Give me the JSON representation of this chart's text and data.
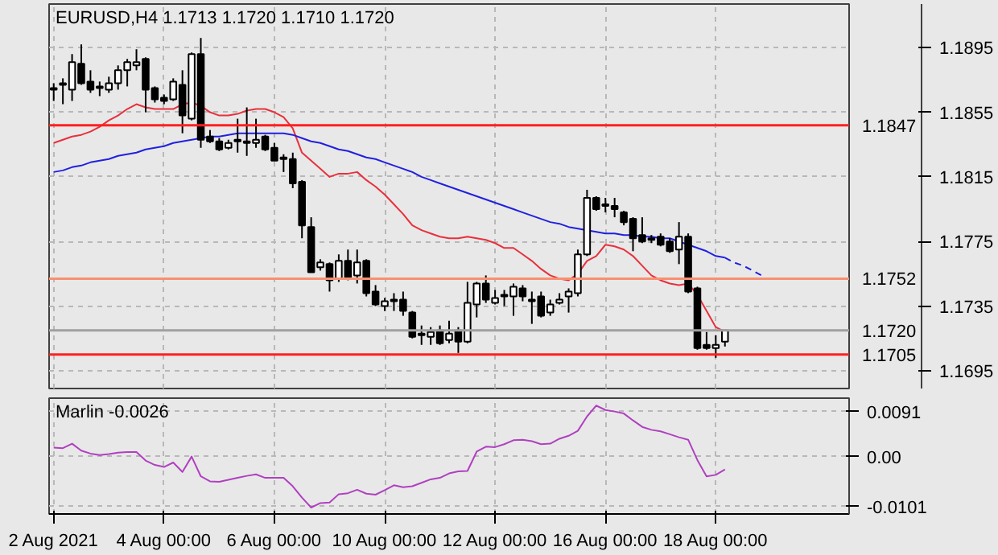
{
  "chart_data": [
    {
      "type": "candlestick",
      "title": "EURUSD,H4  1.1713 1.1720 1.1710 1.1720",
      "tick_labels": "y",
      "grid": true,
      "categories": [
        null,
        null,
        null,
        null,
        null,
        null,
        null,
        null,
        null,
        null,
        null,
        null,
        null,
        null,
        null,
        null,
        null,
        null,
        null,
        null,
        null,
        null,
        null,
        null,
        null,
        null,
        null,
        null,
        null,
        null,
        null,
        null,
        null,
        null,
        null,
        null,
        null,
        null,
        null,
        null,
        null,
        null,
        null,
        null,
        null,
        null,
        null,
        null,
        null,
        null,
        null,
        null,
        null,
        null,
        null,
        null,
        null,
        null,
        null,
        null,
        null,
        null,
        null,
        null,
        null,
        null,
        null,
        null,
        null,
        null,
        null,
        null,
        null,
        null,
        null,
        null,
        null,
        null,
        null,
        null,
        null,
        null,
        null,
        null,
        null,
        null,
        null
      ],
      "ohlc": [
        [
          1.187,
          1.1873,
          1.1862,
          1.1869
        ],
        [
          1.1872,
          1.1876,
          1.186,
          1.1873
        ],
        [
          1.1869,
          1.1891,
          1.1862,
          1.1886
        ],
        [
          1.1885,
          1.1897,
          1.1872,
          1.1873
        ],
        [
          1.1874,
          1.1881,
          1.1867,
          1.1869
        ],
        [
          1.1871,
          1.1874,
          1.1865,
          1.187
        ],
        [
          1.1869,
          1.1877,
          1.1867,
          1.1873
        ],
        [
          1.1873,
          1.1884,
          1.1869,
          1.1881
        ],
        [
          1.1881,
          1.1888,
          1.1871,
          1.1886
        ],
        [
          1.1884,
          1.1894,
          1.1881,
          1.1886
        ],
        [
          1.1888,
          1.1889,
          1.1855,
          1.1869
        ],
        [
          1.187,
          1.1871,
          1.1861,
          1.1863
        ],
        [
          1.1864,
          1.1866,
          1.186,
          1.1862
        ],
        [
          1.1863,
          1.1876,
          1.1862,
          1.1874
        ],
        [
          1.1872,
          1.1881,
          1.1842,
          1.1853
        ],
        [
          1.1851,
          1.1892,
          1.185,
          1.1891
        ],
        [
          1.1891,
          1.1901,
          1.1833,
          1.1838
        ],
        [
          1.184,
          1.1844,
          1.1836,
          1.1837
        ],
        [
          1.1837,
          1.1839,
          1.1831,
          1.1832
        ],
        [
          1.1833,
          1.1838,
          1.1832,
          1.1836
        ],
        [
          1.1837,
          1.1851,
          1.183,
          1.1838
        ],
        [
          1.1836,
          1.1858,
          1.1828,
          1.1837
        ],
        [
          1.1836,
          1.1851,
          1.1833,
          1.1838
        ],
        [
          1.184,
          1.1841,
          1.1831,
          1.1832
        ],
        [
          1.1833,
          1.1836,
          1.1825,
          1.1825
        ],
        [
          1.1826,
          1.1829,
          1.1818,
          1.1827
        ],
        [
          1.1826,
          1.183,
          1.1808,
          1.1811
        ],
        [
          1.1812,
          1.1813,
          1.1777,
          1.1785
        ],
        [
          1.1784,
          1.179,
          1.1756,
          1.1756
        ],
        [
          1.1759,
          1.1764,
          1.1757,
          1.1762
        ],
        [
          1.1761,
          1.1762,
          1.1744,
          1.1751
        ],
        [
          1.1752,
          1.1767,
          1.175,
          1.1763
        ],
        [
          1.1763,
          1.177,
          1.1751,
          1.1753
        ],
        [
          1.1754,
          1.177,
          1.1749,
          1.1762
        ],
        [
          1.1763,
          1.1764,
          1.1741,
          1.1743
        ],
        [
          1.1744,
          1.1748,
          1.1735,
          1.1736
        ],
        [
          1.1735,
          1.174,
          1.1732,
          1.1738
        ],
        [
          1.1738,
          1.1743,
          1.1732,
          1.1739
        ],
        [
          1.1739,
          1.1744,
          1.1729,
          1.1732
        ],
        [
          1.1731,
          1.1732,
          1.1715,
          1.1716
        ],
        [
          1.1717,
          1.1723,
          1.1711,
          1.1718
        ],
        [
          1.1716,
          1.1722,
          1.1711,
          1.1719
        ],
        [
          1.172,
          1.1723,
          1.1711,
          1.1712
        ],
        [
          1.1714,
          1.1726,
          1.1712,
          1.1718
        ],
        [
          1.172,
          1.1722,
          1.1706,
          1.1713
        ],
        [
          1.1713,
          1.175,
          1.1712,
          1.1737
        ],
        [
          1.1736,
          1.175,
          1.1728,
          1.1749
        ],
        [
          1.1749,
          1.1754,
          1.1737,
          1.1739
        ],
        [
          1.1737,
          1.1745,
          1.1736,
          1.174
        ],
        [
          1.1741,
          1.1745,
          1.1735,
          1.1742
        ],
        [
          1.1741,
          1.1749,
          1.1729,
          1.1747
        ],
        [
          1.1746,
          1.1748,
          1.1738,
          1.1741
        ],
        [
          1.1739,
          1.1744,
          1.1724,
          1.1738
        ],
        [
          1.1741,
          1.1744,
          1.1728,
          1.1729
        ],
        [
          1.1731,
          1.1739,
          1.1729,
          1.1736
        ],
        [
          1.1737,
          1.1743,
          1.1736,
          1.1739
        ],
        [
          1.1741,
          1.1746,
          1.1731,
          1.1744
        ],
        [
          1.1743,
          1.177,
          1.1741,
          1.1767
        ],
        [
          1.1767,
          1.1807,
          1.1766,
          1.1802
        ],
        [
          1.1802,
          1.1803,
          1.1794,
          1.1795
        ],
        [
          1.1798,
          1.1802,
          1.1793,
          1.1797
        ],
        [
          1.1797,
          1.1802,
          1.179,
          1.1795
        ],
        [
          1.1793,
          1.1794,
          1.1785,
          1.1787
        ],
        [
          1.1789,
          1.179,
          1.1769,
          1.1777
        ],
        [
          1.1779,
          1.179,
          1.1774,
          1.1775
        ],
        [
          1.1777,
          1.1779,
          1.1774,
          1.1776
        ],
        [
          1.1778,
          1.178,
          1.1772,
          1.1773
        ],
        [
          1.1775,
          1.1777,
          1.1768,
          1.1769
        ],
        [
          1.177,
          1.1787,
          1.1761,
          1.1778
        ],
        [
          1.1778,
          1.178,
          1.1743,
          1.1744
        ],
        [
          1.1746,
          1.1747,
          1.1708,
          1.1709
        ],
        [
          1.1711,
          1.1719,
          1.1708,
          1.1709
        ],
        [
          1.1709,
          1.1717,
          1.1703,
          1.1711
        ],
        [
          1.1713,
          1.172,
          1.171,
          1.172
        ],
        null,
        null,
        null,
        null,
        null,
        null,
        null,
        null,
        null,
        null,
        null,
        null,
        null
      ],
      "series": [
        {
          "type": "line",
          "color": "#e8303c",
          "values": [
            1.1836,
            1.1838,
            1.184,
            1.1841,
            1.1843,
            1.1846,
            1.185,
            1.1853,
            1.1857,
            1.186,
            1.1858,
            1.1857,
            1.1857,
            1.1857,
            1.186,
            1.1861,
            1.1859,
            1.1855,
            1.1853,
            1.1853,
            1.1854,
            1.1856,
            1.1857,
            1.1857,
            1.1855,
            1.1852,
            1.1845,
            1.183,
            1.1825,
            1.182,
            1.1815,
            1.1817,
            1.1817,
            1.1818,
            1.1813,
            1.1809,
            1.1804,
            1.1798,
            1.1792,
            1.1785,
            1.1782,
            1.178,
            1.1778,
            1.1777,
            1.1777,
            1.1778,
            1.1777,
            1.1776,
            1.1774,
            1.1771,
            1.1771,
            1.1767,
            1.1763,
            1.1758,
            1.1754,
            1.1752,
            1.1751,
            1.1755,
            1.1763,
            1.1766,
            1.1773,
            1.1772,
            1.177,
            1.1766,
            1.176,
            1.1754,
            1.1751,
            1.1749,
            1.1748,
            1.1749,
            1.1742,
            1.1732,
            1.1722,
            1.1719,
            null,
            null,
            null,
            null,
            null,
            null,
            null,
            null,
            null,
            null,
            null,
            null,
            null
          ]
        },
        {
          "type": "line",
          "color": "#2020e0",
          "values": [
            1.1818,
            1.1819,
            1.1821,
            1.1822,
            1.1824,
            1.1825,
            1.1826,
            1.1828,
            1.1829,
            1.183,
            1.1832,
            1.1833,
            1.1834,
            1.1836,
            1.1837,
            1.1838,
            1.1839,
            1.184,
            1.184,
            1.1841,
            1.1842,
            1.1842,
            1.1842,
            1.1842,
            1.1842,
            1.1842,
            1.1841,
            1.1839,
            1.1837,
            1.1836,
            1.1834,
            1.1832,
            1.1831,
            1.1829,
            1.1827,
            1.1826,
            1.1824,
            1.1822,
            1.182,
            1.1818,
            1.1815,
            1.1813,
            1.1811,
            1.1809,
            1.1807,
            1.1805,
            1.1803,
            1.1801,
            1.1799,
            1.1797,
            1.1795,
            1.1793,
            1.1791,
            1.1789,
            1.1787,
            1.1786,
            1.1784,
            1.1783,
            1.1782,
            1.1781,
            1.178,
            1.178,
            1.1779,
            1.1779,
            1.1778,
            1.1778,
            1.1777,
            1.1777,
            1.1775,
            1.1773,
            1.1771,
            1.1769,
            1.1766,
            1.1765,
            null,
            null,
            null,
            null,
            null,
            null,
            null,
            null,
            null,
            null,
            null,
            null,
            null
          ]
        },
        {
          "type": "line",
          "color": "#2020e0",
          "line_style": "dashed",
          "values": [
            null,
            null,
            null,
            null,
            null,
            null,
            null,
            null,
            null,
            null,
            null,
            null,
            null,
            null,
            null,
            null,
            null,
            null,
            null,
            null,
            null,
            null,
            null,
            null,
            null,
            null,
            null,
            null,
            null,
            null,
            null,
            null,
            null,
            null,
            null,
            null,
            null,
            null,
            null,
            null,
            null,
            null,
            null,
            null,
            null,
            null,
            null,
            null,
            null,
            null,
            null,
            null,
            null,
            null,
            null,
            null,
            null,
            null,
            null,
            null,
            null,
            null,
            null,
            null,
            null,
            null,
            null,
            null,
            null,
            null,
            null,
            null,
            null,
            1.1765,
            1.1762,
            1.176,
            1.1757,
            1.1754,
            null,
            null,
            null,
            null,
            null,
            null,
            null,
            null,
            null
          ]
        }
      ],
      "ref_lines": [
        {
          "axis": "y",
          "value": 1.1847,
          "label": "1.1847",
          "color": "#ff2020"
        },
        {
          "axis": "y",
          "value": 1.1752,
          "label": "1.1752",
          "color": "#f89070"
        },
        {
          "axis": "y",
          "value": 1.172,
          "label": "1.1720",
          "color": "#a0a0a0"
        },
        {
          "axis": "y",
          "value": 1.1705,
          "label": "1.1705",
          "color": "#ff2020"
        }
      ],
      "ylim": [
        1.1684,
        1.1922
      ],
      "yticks": [
        1.1895,
        1.1855,
        1.1815,
        1.1775,
        1.1735,
        1.1695
      ]
    },
    {
      "type": "line",
      "title": "Marlin -0.0026",
      "grid": true,
      "categories": [
        "2 Aug 2021",
        null,
        null,
        null,
        null,
        null,
        null,
        null,
        null,
        null,
        null,
        null,
        "4 Aug 00:00",
        null,
        null,
        null,
        null,
        null,
        null,
        null,
        null,
        null,
        null,
        null,
        "6 Aug 00:00",
        null,
        null,
        null,
        null,
        null,
        null,
        null,
        null,
        null,
        null,
        null,
        "10 Aug 00:00",
        null,
        null,
        null,
        null,
        null,
        null,
        null,
        null,
        null,
        null,
        null,
        "12 Aug 00:00",
        null,
        null,
        null,
        null,
        null,
        null,
        null,
        null,
        null,
        null,
        null,
        "16 Aug 00:00",
        null,
        null,
        null,
        null,
        null,
        null,
        null,
        null,
        null,
        null,
        null,
        "18 Aug 00:00",
        null,
        null,
        null,
        null,
        null,
        null,
        null,
        null,
        null,
        null,
        null,
        null,
        null,
        null
      ],
      "series": [
        {
          "color": "#b040c0",
          "values": [
            0.0018,
            0.0017,
            0.0026,
            0.0012,
            0.0006,
            0.0003,
            0.0005,
            0.0008,
            0.0009,
            0.0009,
            -0.0008,
            -0.0017,
            -0.0021,
            -0.0012,
            -0.0031,
            0.0,
            -0.004,
            -0.005,
            -0.0051,
            -0.0047,
            -0.0043,
            -0.0039,
            -0.0036,
            -0.0043,
            -0.0043,
            -0.0043,
            -0.006,
            -0.0083,
            -0.0103,
            -0.0094,
            -0.0093,
            -0.0076,
            -0.0074,
            -0.0067,
            -0.0075,
            -0.0077,
            -0.0068,
            -0.0058,
            -0.0062,
            -0.006,
            -0.0053,
            -0.0046,
            -0.0043,
            -0.0034,
            -0.003,
            -0.0029,
            0.001,
            0.002,
            0.0019,
            0.0025,
            0.0033,
            0.0034,
            0.0031,
            0.0025,
            0.0026,
            0.0036,
            0.0042,
            0.0052,
            0.0081,
            0.0103,
            0.0094,
            0.0091,
            0.0087,
            0.0073,
            0.006,
            0.0054,
            0.0051,
            0.0045,
            0.0039,
            0.0034,
            -0.0007,
            -0.004,
            -0.0037,
            -0.0026,
            null,
            null,
            null,
            null,
            null,
            null,
            null,
            null,
            null,
            null,
            null,
            null,
            null
          ]
        }
      ],
      "ylim": [
        -0.0116,
        0.0118
      ],
      "yticks": [
        0.0091,
        {
          "value": 0,
          "label": "0.00"
        },
        -0.0101
      ]
    }
  ]
}
